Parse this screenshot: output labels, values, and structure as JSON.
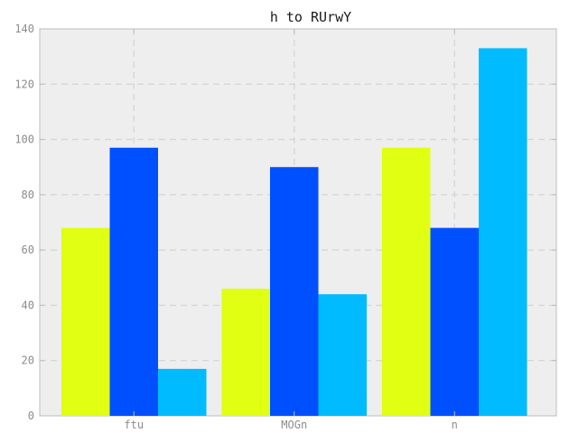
{
  "chart_data": {
    "type": "bar",
    "title": "h to RUrwY",
    "xlabel": "",
    "ylabel": "",
    "categories": [
      "ftu",
      "MOGn",
      "n"
    ],
    "series": [
      {
        "values": [
          68,
          46,
          97
        ],
        "color": "#e0ff12"
      },
      {
        "values": [
          97,
          90,
          68
        ],
        "color": "#0050ff"
      },
      {
        "values": [
          17,
          44,
          133
        ],
        "color": "#00bbff"
      }
    ],
    "ylim": [
      0,
      140
    ],
    "yticks": [
      0,
      20,
      40,
      60,
      80,
      100,
      120,
      140
    ],
    "grid": true,
    "background": "#eeeeee"
  }
}
